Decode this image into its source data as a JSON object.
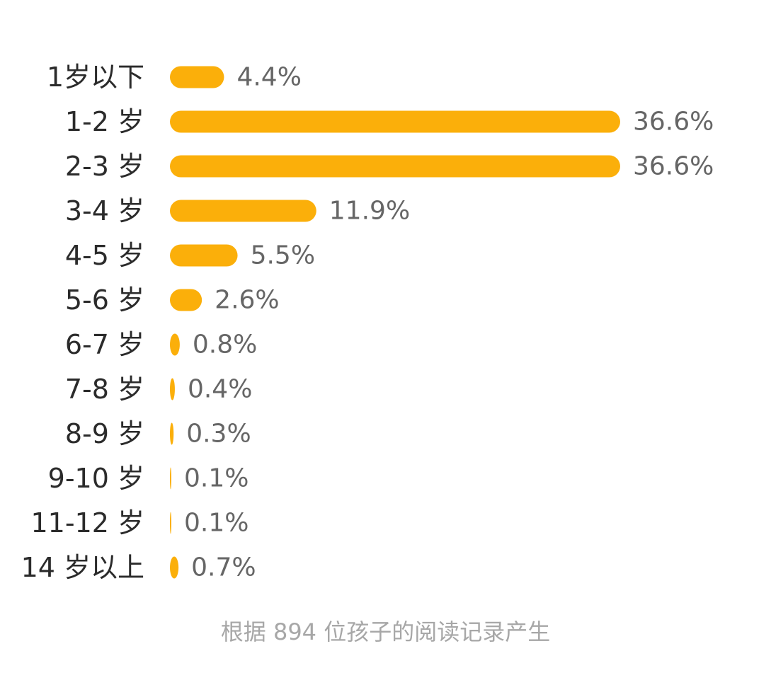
{
  "chart_data": {
    "type": "bar",
    "orientation": "horizontal",
    "categories": [
      "1岁以下",
      "1-2 岁",
      "2-3 岁",
      "3-4 岁",
      "4-5 岁",
      "5-6 岁",
      "6-7 岁",
      "7-8 岁",
      "8-9 岁",
      "9-10 岁",
      "11-12 岁",
      "14 岁以上"
    ],
    "values": [
      4.4,
      36.6,
      36.6,
      11.9,
      5.5,
      2.6,
      0.8,
      0.4,
      0.3,
      0.1,
      0.1,
      0.7
    ],
    "value_labels": [
      "4.4%",
      "36.6%",
      "36.6%",
      "11.9%",
      "5.5%",
      "2.6%",
      "0.8%",
      "0.4%",
      "0.3%",
      "0.1%",
      "0.1%",
      "0.7%"
    ],
    "bar_color": "#FBAF0A",
    "grid": false,
    "legend": "none"
  },
  "footnote": "根据 894 位孩子的阅读记录产生"
}
